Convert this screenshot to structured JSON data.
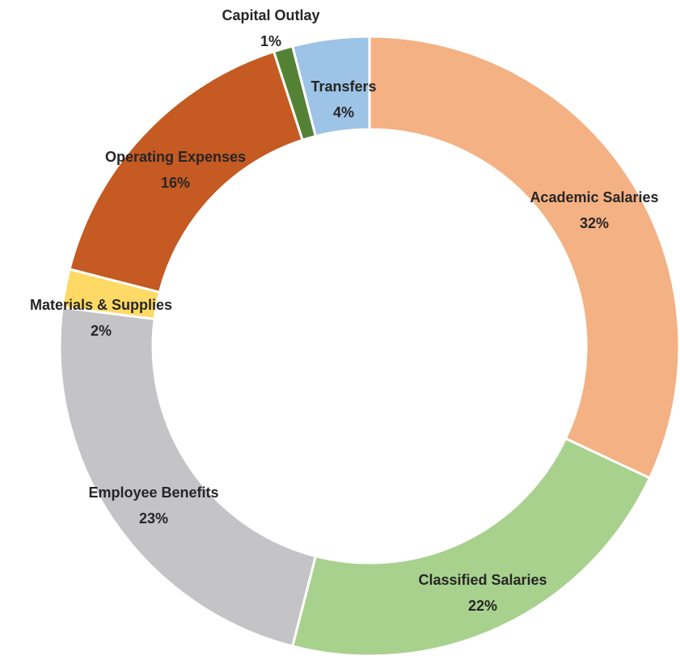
{
  "chart_data": {
    "type": "donut",
    "categories": [
      "Academic Salaries",
      "Classified Salaries",
      "Employee Benefits",
      "Materials & Supplies",
      "Operating Expenses",
      "Capital Outlay",
      "Transfers"
    ],
    "values": [
      32,
      22,
      23,
      2,
      16,
      1,
      4
    ],
    "value_labels": [
      "32%",
      "22%",
      "23%",
      "2%",
      "16%",
      "1%",
      "4%"
    ],
    "colors": [
      "#f4b183",
      "#a9d18e",
      "#c4c4c6",
      "#ffd966",
      "#c55a22",
      "#548235",
      "#9dc3e6"
    ]
  }
}
